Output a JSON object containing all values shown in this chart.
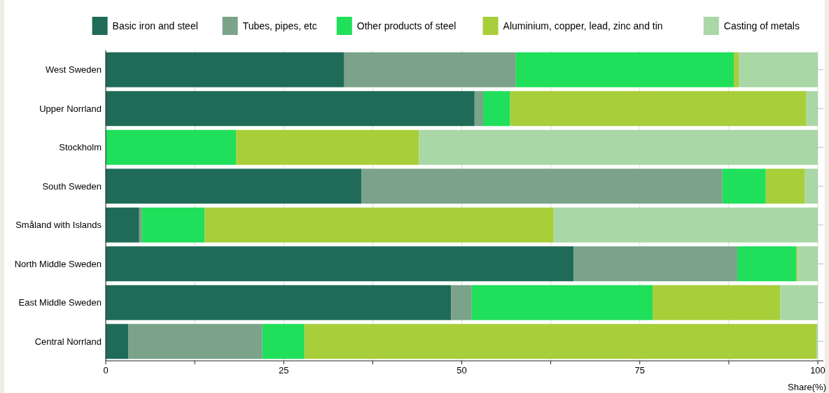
{
  "chart_data": {
    "type": "bar",
    "orientation": "horizontal",
    "stacked": true,
    "xlabel": "Share(%)",
    "categories": [
      "West Sweden",
      "Upper Norrland",
      "Stockholm",
      "South Sweden",
      "Småland with Islands",
      "North Middle Sweden",
      "East Middle Sweden",
      "Central Norrland"
    ],
    "series": [
      {
        "name": "Basic iron and steel",
        "color": "#1f6b58",
        "values": [
          33.5,
          51.8,
          0,
          35.9,
          4.7,
          65.7,
          48.5,
          3.2
        ]
      },
      {
        "name": "Tubes, pipes, etc",
        "color": "#7aa38a",
        "values": [
          24.1,
          1.2,
          0,
          50.7,
          0.4,
          23.0,
          2.9,
          18.8
        ]
      },
      {
        "name": "Other products of steel",
        "color": "#20df5a",
        "values": [
          30.6,
          3.8,
          18.3,
          6.1,
          8.8,
          8.3,
          25.4,
          5.9
        ]
      },
      {
        "name": "Aluminium, copper, lead, zinc and tin",
        "color": "#a8ce3a",
        "values": [
          0.7,
          41.6,
          25.7,
          5.5,
          49.0,
          0.2,
          17.9,
          71.9
        ]
      },
      {
        "name": "Casting of metals",
        "color": "#a9d7a6",
        "values": [
          11.1,
          1.6,
          56.0,
          1.8,
          37.1,
          2.8,
          5.3,
          0.2
        ]
      }
    ],
    "xlim": [
      0,
      100
    ],
    "xticks": [
      0,
      {
        "value": 12.5,
        "label": null
      },
      25,
      {
        "value": 37.5,
        "label": null
      },
      50,
      {
        "value": 62.5,
        "label": null
      },
      75,
      {
        "value": 87.5,
        "label": null
      },
      100
    ],
    "grid": "x",
    "legend": "top"
  }
}
